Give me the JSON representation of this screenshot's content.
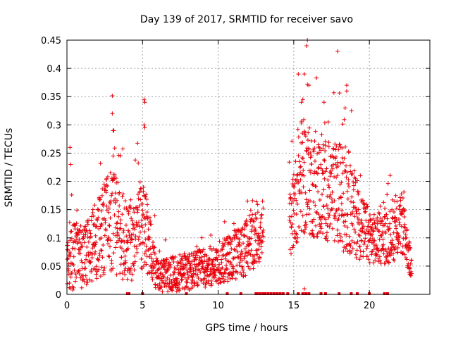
{
  "chart_data": {
    "type": "scatter",
    "title": "Day 139 of 2017, SRMTID for receiver savo",
    "xlabel": "GPS time / hours",
    "ylabel": "SRMTID / TECUs",
    "xlim": [
      0,
      24
    ],
    "ylim": [
      0,
      0.45
    ],
    "x_ticks": [
      0,
      5,
      10,
      15,
      20
    ],
    "y_ticks": [
      0,
      0.05,
      0.1,
      0.15,
      0.2,
      0.25,
      0.3,
      0.35,
      0.4,
      0.45
    ],
    "y_tick_labels": [
      "0",
      "0.05",
      "0.1",
      "0.15",
      "0.2",
      "0.25",
      "0.3",
      "0.35",
      "0.4",
      "0.45"
    ],
    "grid": true,
    "marker": "+",
    "marker_color": "#e8000b",
    "density_profile": [
      {
        "x": 0.0,
        "base": 0.06,
        "spread": 0.09
      },
      {
        "x": 1.0,
        "base": 0.06,
        "spread": 0.08
      },
      {
        "x": 2.0,
        "base": 0.09,
        "spread": 0.1
      },
      {
        "x": 3.0,
        "base": 0.13,
        "spread": 0.14
      },
      {
        "x": 4.0,
        "base": 0.08,
        "spread": 0.1
      },
      {
        "x": 5.0,
        "base": 0.12,
        "spread": 0.12
      },
      {
        "x": 6.0,
        "base": 0.03,
        "spread": 0.04
      },
      {
        "x": 8.0,
        "base": 0.035,
        "spread": 0.05
      },
      {
        "x": 10.0,
        "base": 0.05,
        "spread": 0.05
      },
      {
        "x": 11.5,
        "base": 0.07,
        "spread": 0.07
      },
      {
        "x": 12.8,
        "base": 0.1,
        "spread": 0.07
      },
      {
        "x": 14.8,
        "base": 0.12,
        "spread": 0.08
      },
      {
        "x": 15.5,
        "base": 0.2,
        "spread": 0.15
      },
      {
        "x": 16.5,
        "base": 0.18,
        "spread": 0.13
      },
      {
        "x": 17.5,
        "base": 0.17,
        "spread": 0.13
      },
      {
        "x": 18.5,
        "base": 0.16,
        "spread": 0.14
      },
      {
        "x": 19.5,
        "base": 0.11,
        "spread": 0.08
      },
      {
        "x": 20.5,
        "base": 0.09,
        "spread": 0.06
      },
      {
        "x": 21.5,
        "base": 0.1,
        "spread": 0.07
      },
      {
        "x": 22.2,
        "base": 0.12,
        "spread": 0.08
      },
      {
        "x": 22.8,
        "base": 0.04,
        "spread": 0.03
      }
    ],
    "gaps": [
      [
        13.0,
        14.7
      ]
    ],
    "outliers": [
      {
        "x": 3.0,
        "y": 0.32
      },
      {
        "x": 3.05,
        "y": 0.29
      },
      {
        "x": 3.1,
        "y": 0.29
      },
      {
        "x": 5.1,
        "y": 0.345
      },
      {
        "x": 5.15,
        "y": 0.34
      },
      {
        "x": 5.1,
        "y": 0.3
      },
      {
        "x": 5.15,
        "y": 0.295
      },
      {
        "x": 0.2,
        "y": 0.26
      },
      {
        "x": 0.25,
        "y": 0.23
      },
      {
        "x": 15.9,
        "y": 0.45
      },
      {
        "x": 15.85,
        "y": 0.44
      },
      {
        "x": 17.9,
        "y": 0.43
      },
      {
        "x": 15.3,
        "y": 0.39
      },
      {
        "x": 15.7,
        "y": 0.39
      },
      {
        "x": 18.5,
        "y": 0.37
      },
      {
        "x": 18.5,
        "y": 0.36
      },
      {
        "x": 18.4,
        "y": 0.33
      },
      {
        "x": 16.0,
        "y": 0.37
      },
      {
        "x": 15.6,
        "y": 0.345
      },
      {
        "x": 15.5,
        "y": 0.34
      },
      {
        "x": 17.0,
        "y": 0.34
      },
      {
        "x": 15.7,
        "y": 0.01
      }
    ],
    "zero_markers": [
      4.0,
      4.1,
      5.0,
      7.9,
      10.6,
      11.5,
      12.5,
      12.6,
      12.8,
      13.0,
      13.1,
      13.3,
      13.5,
      13.7,
      13.9,
      14.1,
      14.3,
      14.6,
      15.3,
      15.6,
      15.8,
      16.0,
      16.8,
      17.1,
      18.0,
      18.8,
      19.2,
      20.0,
      21.0,
      21.2
    ]
  }
}
